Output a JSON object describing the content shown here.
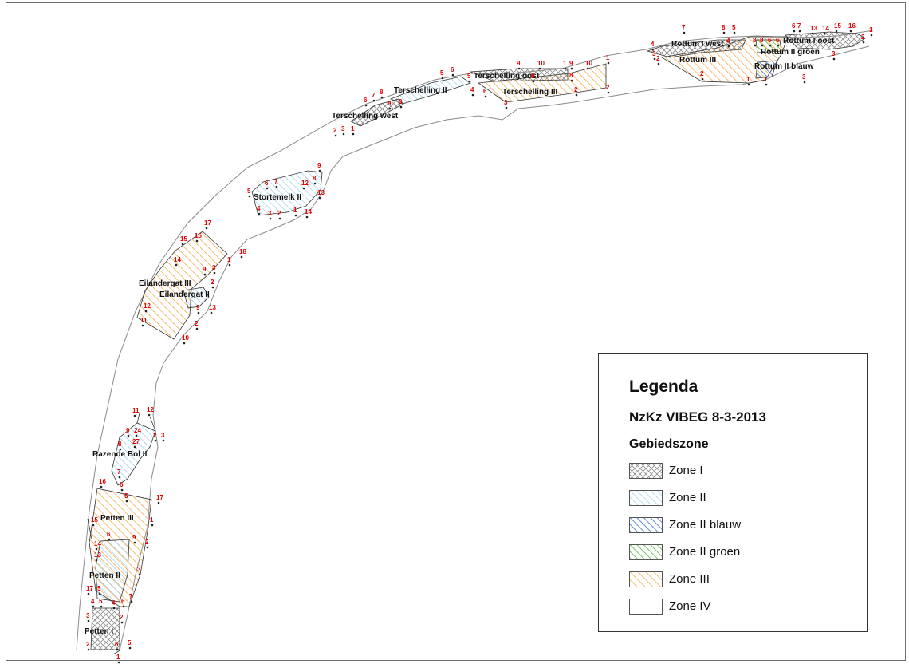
{
  "colors": {
    "zone_i": "#8a8a8a",
    "zone_ii": "#8ccbe8",
    "zone_ii_blauw": "#2a63c9",
    "zone_ii_groen": "#45b22d",
    "zone_iii": "#f2a33a",
    "vertex_number": "#e00000"
  },
  "zones": [
    {
      "label": "Rottum I west",
      "zone": "I"
    },
    {
      "label": "Rottum I oost",
      "zone": "I"
    },
    {
      "label": "Rottum III",
      "zone": "III"
    },
    {
      "label": "Rottum II groen",
      "zone": "II groen"
    },
    {
      "label": "Rottum II blauw",
      "zone": "II blauw"
    },
    {
      "label": "Terschelling oost",
      "zone": "I"
    },
    {
      "label": "Terschelling III",
      "zone": "III"
    },
    {
      "label": "Terschelling II",
      "zone": "II"
    },
    {
      "label": "Terschelling west",
      "zone": "I"
    },
    {
      "label": "Stortemelk II",
      "zone": "II"
    },
    {
      "label": "Eilandergat III",
      "zone": "III"
    },
    {
      "label": "Eilandergat II",
      "zone": "II"
    },
    {
      "label": "Razende Bol II",
      "zone": "II"
    },
    {
      "label": "Petten III",
      "zone": "III"
    },
    {
      "label": "Petten II",
      "zone": "II"
    },
    {
      "label": "Petten I",
      "zone": "I"
    }
  ],
  "vertex_labels": [
    "7",
    "8",
    "5",
    "6",
    "7",
    "13",
    "14",
    "15",
    "16",
    "1",
    "4",
    "4",
    "8",
    "8",
    "6",
    "6",
    "2",
    "3",
    "3",
    "2",
    "2",
    "1",
    "1",
    "3",
    "9",
    "10",
    "1",
    "9",
    "10",
    "1",
    "8",
    "5",
    "6",
    "5",
    "4",
    "6",
    "8",
    "2",
    "2",
    "3",
    "6",
    "7",
    "8",
    "9",
    "3",
    "2",
    "3",
    "1",
    "9",
    "6",
    "7",
    "12",
    "8",
    "13",
    "5",
    "4",
    "3",
    "2",
    "1",
    "14",
    "17",
    "15",
    "16",
    "14",
    "1",
    "18",
    "9",
    "3",
    "2",
    "12",
    "9",
    "13",
    "11",
    "2",
    "10",
    "11",
    "12",
    "9",
    "24",
    "2",
    "3",
    "8",
    "27",
    "7",
    "16",
    "6",
    "5",
    "17",
    "15",
    "1",
    "14",
    "6",
    "9",
    "2",
    "13",
    "3",
    "17",
    "5",
    "4",
    "5",
    "4",
    "6",
    "7",
    "2",
    "3",
    "2",
    "6",
    "5",
    "1"
  ],
  "legend": {
    "title": "Legenda",
    "subtitle": "NzKz VIBEG 8-3-2013",
    "group_title": "Gebiedszone",
    "items": [
      {
        "label": "Zone I",
        "pattern": "cross-hatch"
      },
      {
        "label": "Zone II",
        "pattern": "hatch-light-blue"
      },
      {
        "label": "Zone II blauw",
        "pattern": "hatch-blue"
      },
      {
        "label": "Zone II groen",
        "pattern": "hatch-green"
      },
      {
        "label": "Zone III",
        "pattern": "hatch-orange"
      },
      {
        "label": "Zone IV",
        "pattern": "blank"
      }
    ]
  }
}
